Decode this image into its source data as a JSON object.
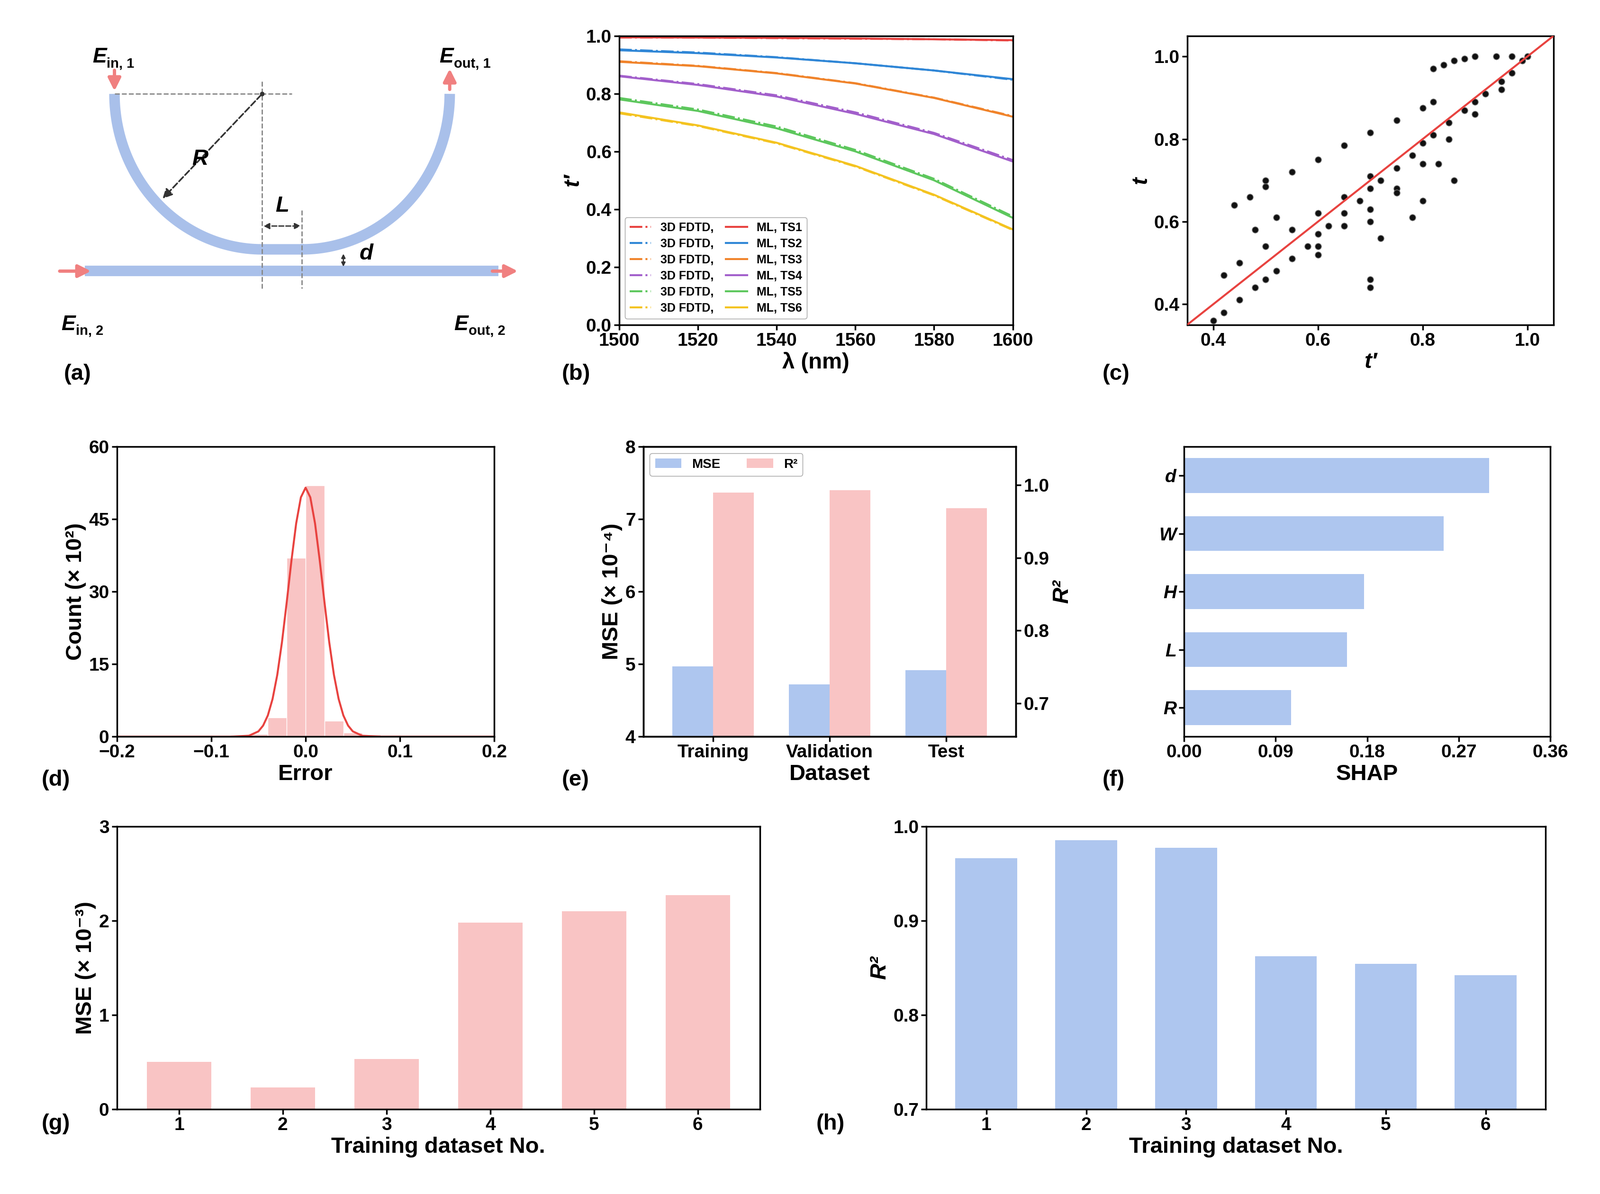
{
  "diagram": {
    "panel_label": "(a)",
    "ports": [
      {
        "main": "E",
        "sub": "in, 1"
      },
      {
        "main": "E",
        "sub": "out, 1"
      },
      {
        "main": "E",
        "sub": "in, 2"
      },
      {
        "main": "E",
        "sub": "out, 2"
      }
    ],
    "labels": {
      "radius": "R",
      "length": "L",
      "gap": "d"
    }
  },
  "chart_data": [
    {
      "type": "line",
      "panel_label": "(b)",
      "x_label": "λ (nm)",
      "y_label": "t′",
      "x": [
        1500,
        1520,
        1540,
        1560,
        1580,
        1600
      ],
      "xlim": [
        1500,
        1600
      ],
      "xticks": [
        1500,
        1520,
        1540,
        1560,
        1580,
        1600
      ],
      "ylim": [
        0.0,
        1.0
      ],
      "yticks": [
        0.0,
        0.2,
        0.4,
        0.6,
        0.8,
        1.0
      ],
      "legend": "lower left",
      "series": [
        {
          "name": "3D FDTD,",
          "color": "#e8423f",
          "line_style": "dashdot",
          "values": [
            0.994,
            0.994,
            0.992,
            0.99,
            0.988,
            0.984
          ]
        },
        {
          "name": "3D FDTD,",
          "color": "#2f86d6",
          "line_style": "dashdot",
          "values": [
            0.953,
            0.942,
            0.926,
            0.905,
            0.88,
            0.848
          ]
        },
        {
          "name": "3D FDTD,",
          "color": "#f0832a",
          "line_style": "dashdot",
          "values": [
            0.912,
            0.896,
            0.871,
            0.836,
            0.786,
            0.722
          ]
        },
        {
          "name": "3D FDTD,",
          "color": "#a25fcb",
          "line_style": "dashdot",
          "values": [
            0.862,
            0.833,
            0.794,
            0.735,
            0.664,
            0.57
          ]
        },
        {
          "name": "3D FDTD,",
          "color": "#5dc75d",
          "line_style": "dashdot",
          "values": [
            0.785,
            0.745,
            0.686,
            0.605,
            0.505,
            0.375
          ]
        },
        {
          "name": "3D FDTD,",
          "color": "#f4c320",
          "line_style": "dashdot",
          "values": [
            0.732,
            0.688,
            0.628,
            0.548,
            0.448,
            0.328
          ]
        },
        {
          "name": "ML, TS1",
          "color": "#e8423f",
          "line_style": "solid",
          "values": [
            0.995,
            0.994,
            0.993,
            0.991,
            0.988,
            0.985
          ]
        },
        {
          "name": "ML, TS2",
          "color": "#2f86d6",
          "line_style": "solid",
          "values": [
            0.95,
            0.94,
            0.925,
            0.905,
            0.88,
            0.85
          ]
        },
        {
          "name": "ML, TS3",
          "color": "#f0832a",
          "line_style": "solid",
          "values": [
            0.91,
            0.895,
            0.87,
            0.835,
            0.785,
            0.72
          ]
        },
        {
          "name": "ML, TS4",
          "color": "#a25fcb",
          "line_style": "solid",
          "values": [
            0.86,
            0.83,
            0.79,
            0.73,
            0.66,
            0.565
          ]
        },
        {
          "name": "ML, TS5",
          "color": "#5dc75d",
          "line_style": "solid",
          "values": [
            0.78,
            0.74,
            0.68,
            0.6,
            0.5,
            0.37
          ]
        },
        {
          "name": "ML, TS6",
          "color": "#f4c320",
          "line_style": "solid",
          "values": [
            0.735,
            0.69,
            0.63,
            0.55,
            0.45,
            0.33
          ]
        }
      ]
    },
    {
      "type": "scatter",
      "panel_label": "(c)",
      "x_label": "t′",
      "y_label": "t",
      "xlim": [
        0.35,
        1.05
      ],
      "xticks": [
        0.4,
        0.6,
        0.8,
        1.0
      ],
      "ylim": [
        0.35,
        1.05
      ],
      "yticks": [
        0.4,
        0.6,
        0.8,
        1.0
      ],
      "color": "#111111",
      "marker": "o",
      "x": [
        0.4,
        0.42,
        0.45,
        0.48,
        0.5,
        0.52,
        0.55,
        0.58,
        0.6,
        0.62,
        0.65,
        0.68,
        0.7,
        0.72,
        0.75,
        0.78,
        0.8,
        0.82,
        0.85,
        0.88,
        0.9,
        0.92,
        0.95,
        0.97,
        0.99,
        1.0,
        0.42,
        0.45,
        0.5,
        0.55,
        0.6,
        0.65,
        0.7,
        0.5,
        0.55,
        0.6,
        0.65,
        0.7,
        0.75,
        0.8,
        0.82,
        0.82,
        0.86,
        0.9,
        0.94,
        0.97,
        0.88,
        0.84,
        0.6,
        0.65,
        0.7,
        0.75,
        0.8,
        0.85,
        0.9,
        0.95,
        0.44,
        0.47,
        0.5,
        0.52,
        0.48,
        0.7,
        0.7,
        0.72,
        0.78,
        0.8,
        0.7,
        0.75,
        0.83,
        0.86,
        0.6
      ],
      "y": [
        0.36,
        0.38,
        0.41,
        0.44,
        0.46,
        0.48,
        0.51,
        0.54,
        0.57,
        0.59,
        0.62,
        0.65,
        0.68,
        0.7,
        0.73,
        0.76,
        0.79,
        0.81,
        0.84,
        0.87,
        0.89,
        0.91,
        0.94,
        0.96,
        0.99,
        1.0,
        0.47,
        0.5,
        0.54,
        0.58,
        0.62,
        0.66,
        0.71,
        0.685,
        0.72,
        0.75,
        0.785,
        0.815,
        0.845,
        0.875,
        0.89,
        0.97,
        0.99,
        1.0,
        1.0,
        1.0,
        0.995,
        0.98,
        0.54,
        0.59,
        0.63,
        0.68,
        0.74,
        0.8,
        0.86,
        0.92,
        0.64,
        0.66,
        0.7,
        0.61,
        0.58,
        0.44,
        0.46,
        0.56,
        0.61,
        0.65,
        0.6,
        0.67,
        0.74,
        0.7,
        0.52
      ],
      "reference_line": {
        "x": [
          0.35,
          1.05
        ],
        "y": [
          0.35,
          1.05
        ],
        "color": "#e8423f"
      }
    },
    {
      "type": "histogram",
      "panel_label": "(d)",
      "x_label": "Error",
      "y_label": "Count (× 10²)",
      "xlim": [
        -0.2,
        0.2
      ],
      "xticks": [
        {
          "value": -0.2,
          "label": "−0.2"
        },
        {
          "value": -0.1,
          "label": "−0.1"
        },
        0.0,
        0.1,
        0.2
      ],
      "ylim": [
        0,
        60
      ],
      "yticks": [
        0,
        15,
        30,
        45,
        60
      ],
      "color": "#f9c4c4",
      "bins": [
        -0.14,
        -0.12,
        -0.1,
        -0.08,
        -0.06,
        -0.04,
        -0.02,
        0.0,
        0.02,
        0.04,
        0.06,
        0.08,
        0.1,
        0.12,
        0.14
      ],
      "counts": [
        0.1,
        0.1,
        0.2,
        0.3,
        0.5,
        4.0,
        37.0,
        52.0,
        3.3,
        0.8,
        0.4,
        0.3,
        0.2,
        0.1
      ],
      "fit": {
        "color": "#e8423f",
        "x": [
          -0.2,
          -0.1,
          -0.08,
          -0.06,
          -0.05,
          -0.045,
          -0.04,
          -0.035,
          -0.03,
          -0.025,
          -0.02,
          -0.015,
          -0.01,
          -0.005,
          0.0,
          0.005,
          0.01,
          0.015,
          0.02,
          0.025,
          0.03,
          0.035,
          0.04,
          0.045,
          0.05,
          0.06,
          0.08,
          0.1,
          0.2
        ],
        "values": [
          0.0,
          0.0,
          0.0,
          0.2,
          1.1,
          2.3,
          4.4,
          7.8,
          12.8,
          19.6,
          27.8,
          36.4,
          44.1,
          49.5,
          51.5,
          49.5,
          44.1,
          36.4,
          27.8,
          19.6,
          12.8,
          7.8,
          4.4,
          2.3,
          1.1,
          0.2,
          0.0,
          0.0,
          0.0
        ]
      }
    },
    {
      "type": "bar",
      "panel_label": "(e)",
      "x_label": "Dataset",
      "y_label": "MSE (× 10⁻⁴)",
      "y2_label": "R²",
      "categories": [
        "Training",
        "Validation",
        "Test"
      ],
      "ylim": [
        4,
        8
      ],
      "yticks": [
        4,
        5,
        6,
        7,
        8
      ],
      "y2lim": [
        0.654,
        1.053
      ],
      "y2ticks": [
        0.7,
        0.8,
        0.9,
        1.0
      ],
      "legend": "upper left",
      "series": [
        {
          "name": "MSE",
          "color": "#aec6ef",
          "values": [
            4.97,
            4.72,
            4.92
          ]
        },
        {
          "name": "R²",
          "color": "#f9c4c4",
          "axis": "y2",
          "values": [
            0.99,
            0.993,
            0.968
          ]
        }
      ]
    },
    {
      "type": "bar",
      "panel_label": "(f)",
      "x_label": "SHAP",
      "orientation": "horizontal",
      "categories": [
        "d",
        "W",
        "H",
        "L",
        "R"
      ],
      "values": [
        0.3,
        0.255,
        0.177,
        0.16,
        0.105
      ],
      "color": "#aec6ef",
      "xlim": [
        0.0,
        0.36
      ],
      "xticks": [
        {
          "value": 0.0,
          "label": "0.00"
        },
        {
          "value": 0.09,
          "label": "0.09"
        },
        {
          "value": 0.18,
          "label": "0.18"
        },
        {
          "value": 0.27,
          "label": "0.27"
        },
        {
          "value": 0.36,
          "label": "0.36"
        }
      ]
    },
    {
      "type": "bar",
      "panel_label": "(g)",
      "x_label": "Training dataset No.",
      "y_label": "MSE (× 10⁻³)",
      "categories": [
        "1",
        "2",
        "3",
        "4",
        "5",
        "6"
      ],
      "values": [
        0.5,
        0.23,
        0.53,
        1.98,
        2.1,
        2.27
      ],
      "color": "#f9c4c4",
      "ylim": [
        0,
        3
      ],
      "yticks": [
        0,
        1,
        2,
        3
      ]
    },
    {
      "type": "bar",
      "panel_label": "(h)",
      "x_label": "Training dataset No.",
      "y_label": "R²",
      "categories": [
        "1",
        "2",
        "3",
        "4",
        "5",
        "6"
      ],
      "values": [
        0.966,
        0.985,
        0.977,
        0.862,
        0.854,
        0.842
      ],
      "color": "#aec6ef",
      "ylim": [
        0.7,
        1.0
      ],
      "yticks": [
        0.7,
        0.8,
        0.9,
        1.0
      ]
    }
  ]
}
